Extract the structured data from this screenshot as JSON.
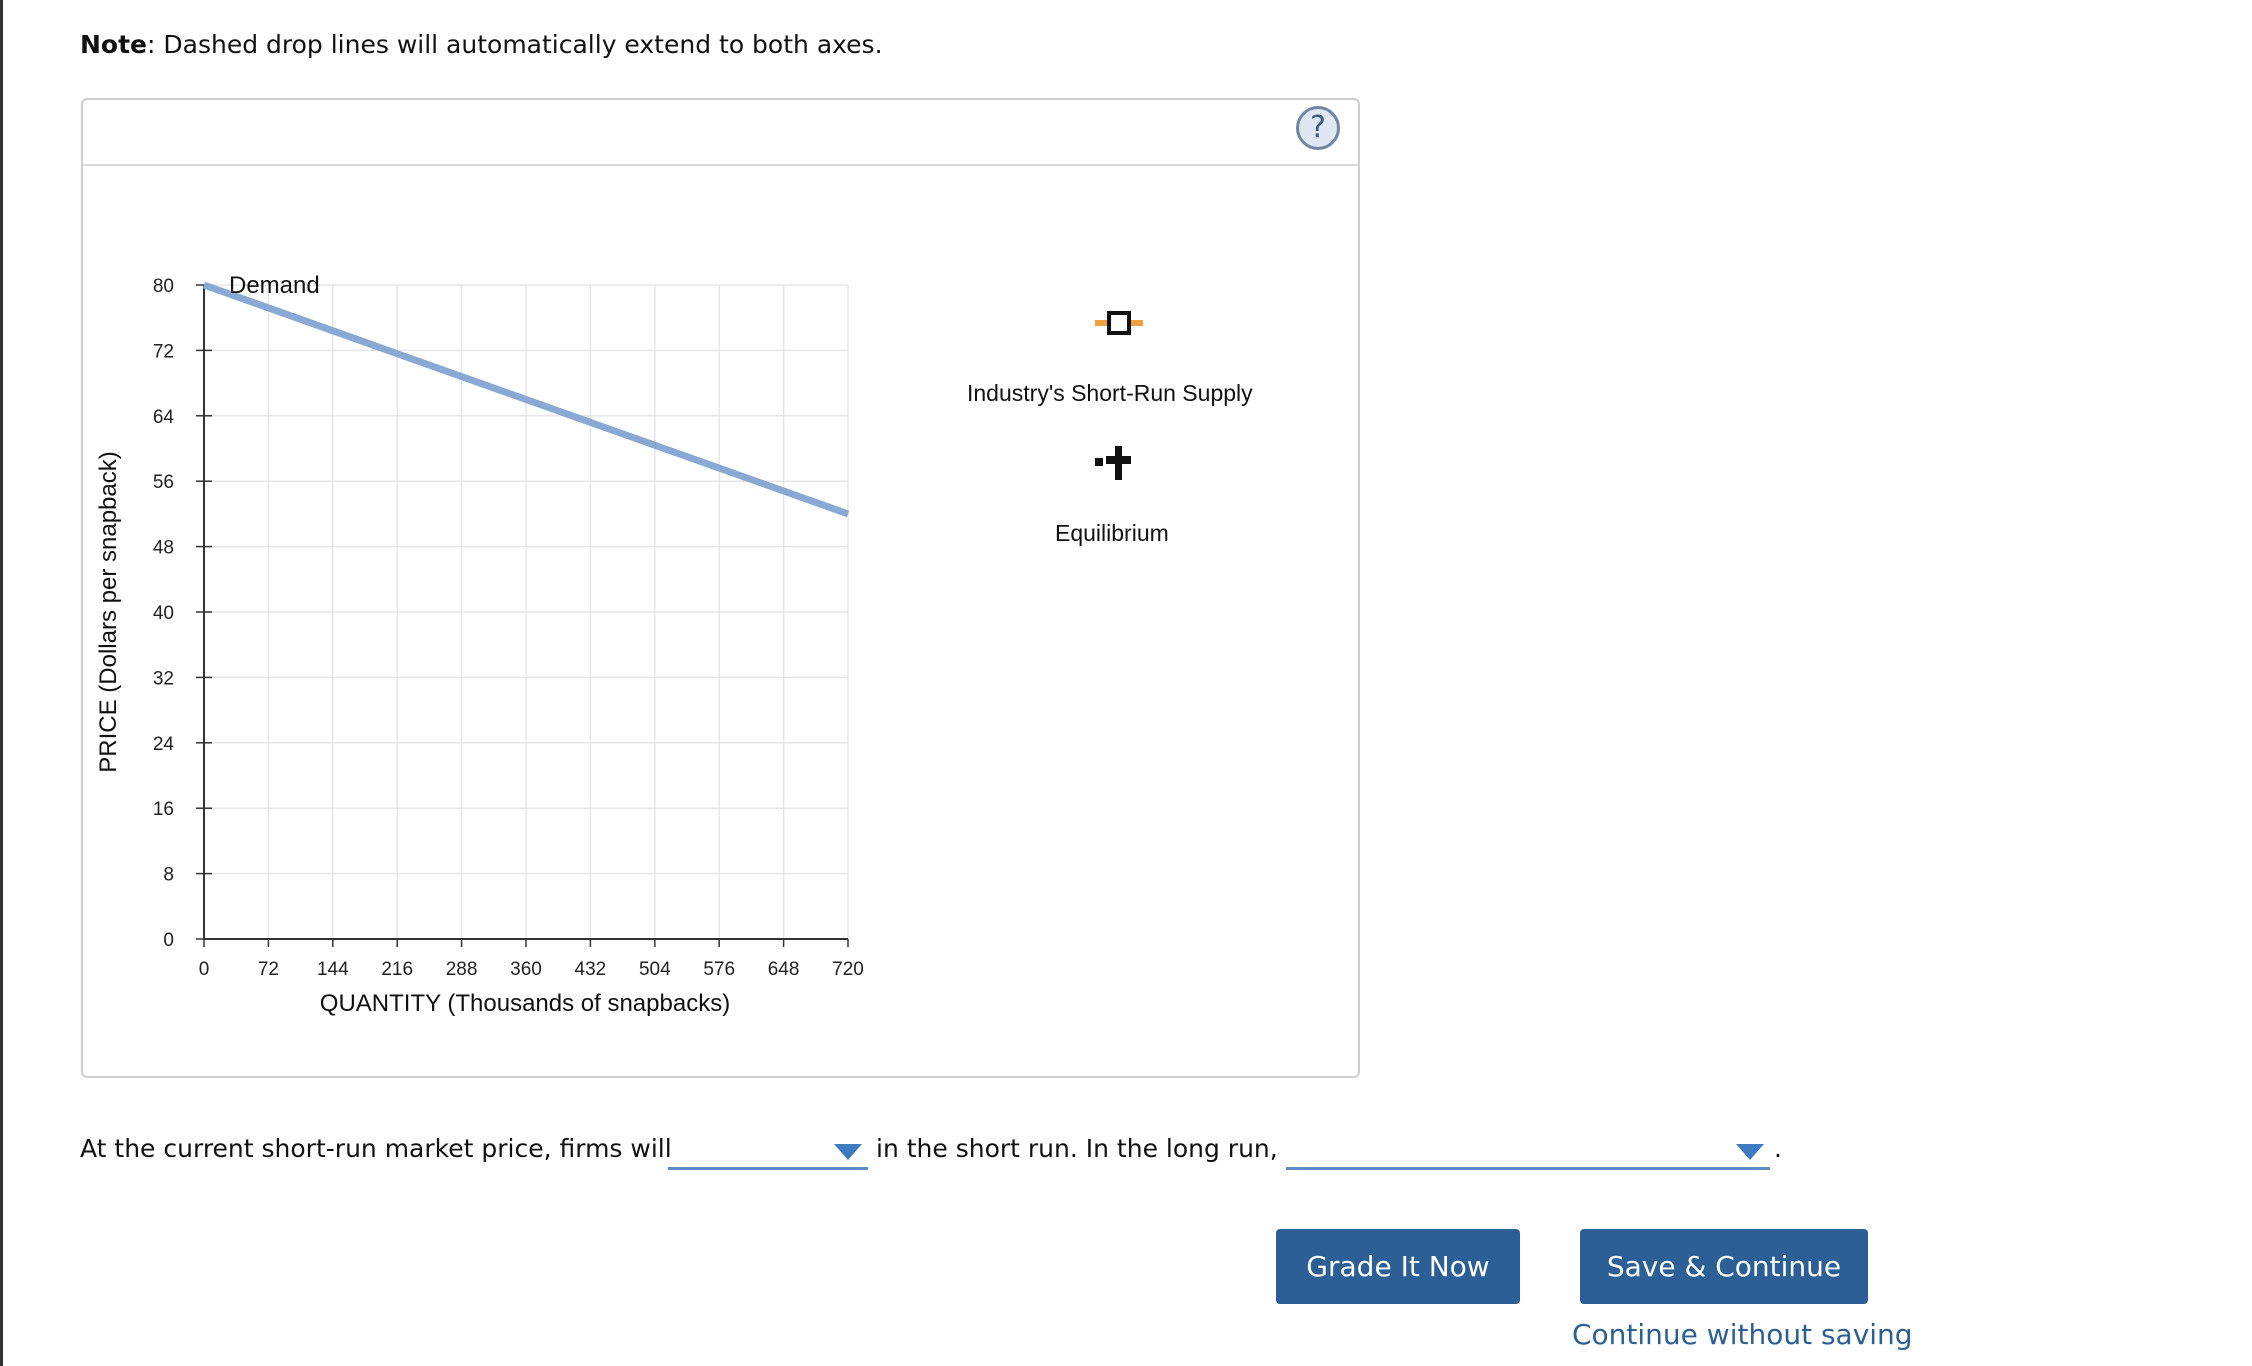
{
  "note": {
    "bold": "Note",
    "text": ": Dashed drop lines will automatically extend to both axes."
  },
  "graph": {
    "help_label": "?",
    "palette": {
      "supply_label": "Industry's Short-Run Supply",
      "equilibrium_label": "Equilibrium",
      "supply_color": "#f0a040",
      "supply_icon": "orange-square-line-icon",
      "equilibrium_icon": "black-cross-icon"
    }
  },
  "chart_data": {
    "type": "line",
    "xlabel": "QUANTITY (Thousands of snapbacks)",
    "ylabel": "PRICE (Dollars per snapback)",
    "xlim": [
      0,
      720
    ],
    "ylim": [
      0,
      80
    ],
    "xticks": [
      "0",
      "72",
      "144",
      "216",
      "288",
      "360",
      "432",
      "504",
      "576",
      "648",
      "720"
    ],
    "yticks": [
      "0",
      "8",
      "16",
      "24",
      "32",
      "40",
      "48",
      "56",
      "64",
      "72",
      "80"
    ],
    "grid": true,
    "series": [
      {
        "name": "Demand",
        "color": "#87a9d4",
        "x": [
          0,
          720
        ],
        "y": [
          80,
          52
        ]
      }
    ]
  },
  "question": {
    "part1": "At the current short-run market price, firms will",
    "part2": "in the short run. In the long run,",
    "part3": ".",
    "dropdown1_value": "",
    "dropdown2_value": ""
  },
  "buttons": {
    "grade": "Grade It Now",
    "save": "Save & Continue",
    "continue_link": "Continue without saving"
  }
}
